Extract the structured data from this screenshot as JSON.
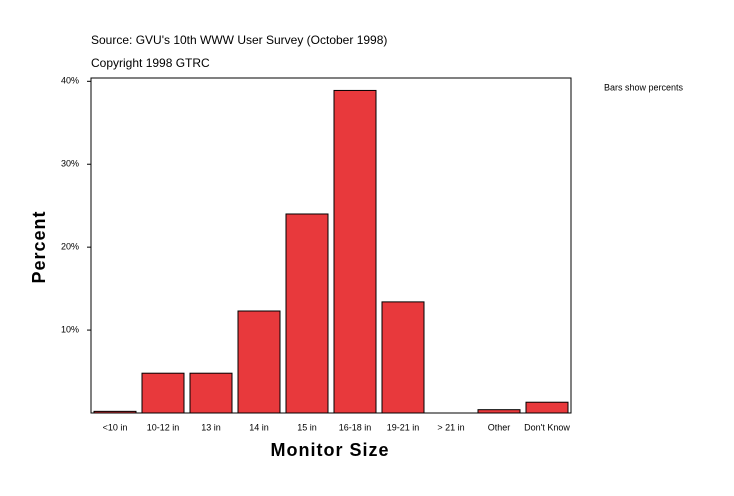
{
  "chart_data": {
    "type": "bar",
    "title": "Source: GVU's 10th WWW User Survey (October 1998)",
    "subtitle": "Copyright 1998 GTRC",
    "annotation": "Bars show percents",
    "x_label": "Monitor Size",
    "y_label": "Percent",
    "categories": [
      "<10 in",
      "10-12 in",
      "13 in",
      "14 in",
      "15 in",
      "16-18 in",
      "19-21 in",
      "> 21 in",
      "Other",
      "Don't Know"
    ],
    "values": [
      0.2,
      4.8,
      4.8,
      12.3,
      24.0,
      38.9,
      13.4,
      0,
      0.4,
      1.3
    ],
    "color": "#e8393c",
    "ylim": [
      0,
      40.4
    ],
    "yticks": [
      {
        "value": 10,
        "label": "10%"
      },
      {
        "value": 20,
        "label": "20%"
      },
      {
        "value": 30,
        "label": "30%"
      },
      {
        "value": 40,
        "label": "40%"
      }
    ],
    "grid": false
  }
}
